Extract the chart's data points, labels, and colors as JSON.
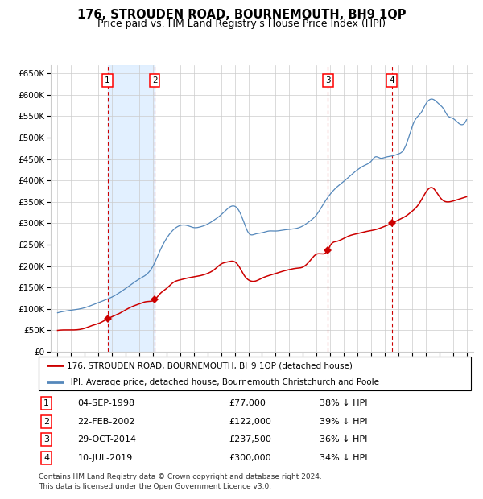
{
  "title": "176, STROUDEN ROAD, BOURNEMOUTH, BH9 1QP",
  "subtitle": "Price paid vs. HM Land Registry's House Price Index (HPI)",
  "legend_label_red": "176, STROUDEN ROAD, BOURNEMOUTH, BH9 1QP (detached house)",
  "legend_label_blue": "HPI: Average price, detached house, Bournemouth Christchurch and Poole",
  "footer": "Contains HM Land Registry data © Crown copyright and database right 2024.\nThis data is licensed under the Open Government Licence v3.0.",
  "transactions": [
    {
      "num": 1,
      "date": "04-SEP-1998",
      "price": 77000,
      "price_str": "£77,000",
      "pct": "38% ↓ HPI",
      "year": 1998.67
    },
    {
      "num": 2,
      "date": "22-FEB-2002",
      "price": 122000,
      "price_str": "£122,000",
      "pct": "39% ↓ HPI",
      "year": 2002.13
    },
    {
      "num": 3,
      "date": "29-OCT-2014",
      "price": 237500,
      "price_str": "£237,500",
      "pct": "36% ↓ HPI",
      "year": 2014.83
    },
    {
      "num": 4,
      "date": "10-JUL-2019",
      "price": 300000,
      "price_str": "£300,000",
      "pct": "34% ↓ HPI",
      "year": 2019.52
    }
  ],
  "xlim": [
    1994.5,
    2025.5
  ],
  "ylim": [
    0,
    670000
  ],
  "yticks": [
    0,
    50000,
    100000,
    150000,
    200000,
    250000,
    300000,
    350000,
    400000,
    450000,
    500000,
    550000,
    600000,
    650000
  ],
  "xticks": [
    1995,
    1996,
    1997,
    1998,
    1999,
    2000,
    2001,
    2002,
    2003,
    2004,
    2005,
    2006,
    2007,
    2008,
    2009,
    2010,
    2011,
    2012,
    2013,
    2014,
    2015,
    2016,
    2017,
    2018,
    2019,
    2020,
    2021,
    2022,
    2023,
    2024,
    2025
  ],
  "color_red": "#cc0000",
  "color_blue": "#5588bb",
  "color_grid": "#cccccc",
  "color_bg": "#ffffff",
  "color_shade": "#ddeeff",
  "title_fontsize": 10.5,
  "subtitle_fontsize": 9,
  "axis_fontsize": 7.5,
  "legend_fontsize": 7.5,
  "table_fontsize": 8,
  "footer_fontsize": 6.5
}
